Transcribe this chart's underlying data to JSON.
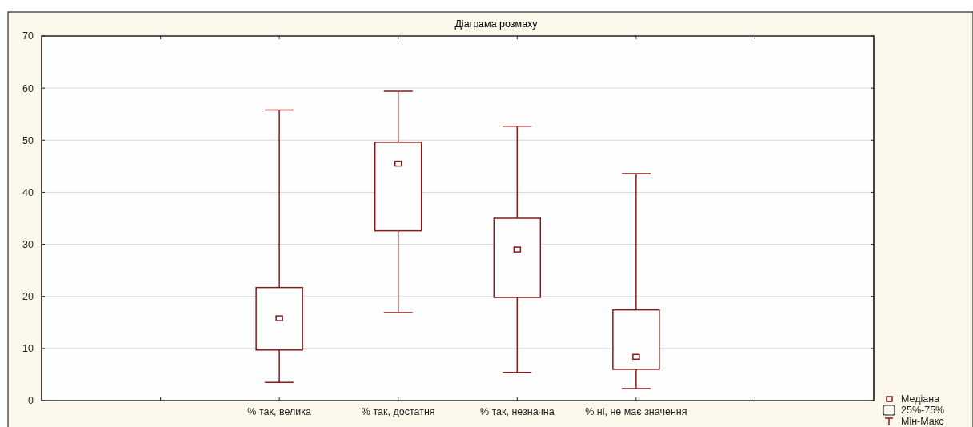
{
  "chart_data": {
    "type": "box",
    "title": "Діаграма розмаху",
    "categories": [
      null,
      "% так, велика",
      "% так, достатня",
      "% так, незначна",
      "% ні, не має значення",
      null
    ],
    "color": "#8b1a1a",
    "boxes": [
      null,
      {
        "low": 3.5,
        "q1": 9.7,
        "median": 15.8,
        "q3": 21.7,
        "high": 55.8
      },
      {
        "low": 16.9,
        "q1": 32.6,
        "median": 45.5,
        "q3": 49.6,
        "high": 59.4
      },
      {
        "low": 5.4,
        "q1": 19.8,
        "median": 29,
        "q3": 35,
        "high": 52.7
      },
      {
        "low": 2.3,
        "q1": 6,
        "median": 8.4,
        "q3": 17.4,
        "high": 43.6
      },
      null
    ],
    "ylim": [
      0,
      70
    ],
    "yticks": [
      0,
      10,
      20,
      30,
      40,
      50,
      60,
      70
    ],
    "grid": "y",
    "annotations": [
      "Медіана",
      "25%-75%",
      "Мін-Макс"
    ]
  }
}
